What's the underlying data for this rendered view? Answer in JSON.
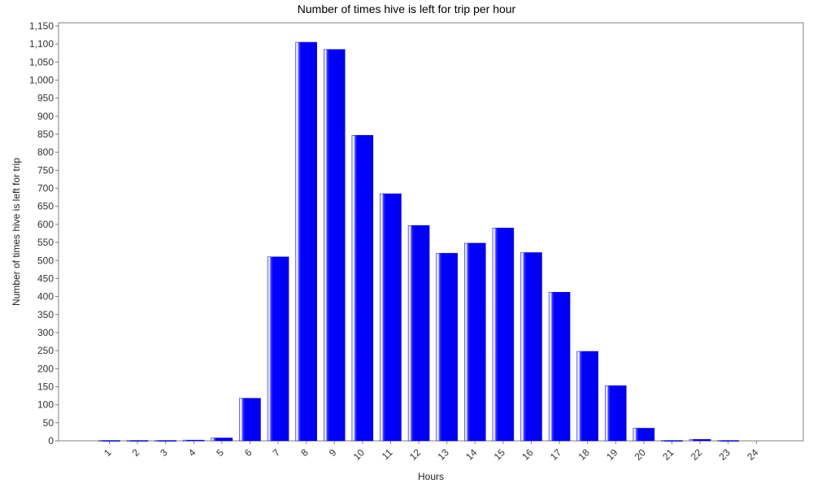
{
  "chart_data": {
    "type": "bar",
    "title": "Number of times hive is left for trip per hour",
    "xlabel": "Hours",
    "ylabel": "Number of times hive is left for trip",
    "ylim": [
      0,
      1150
    ],
    "ytick_step": 50,
    "grid": false,
    "categories": [
      "1",
      "2",
      "3",
      "4",
      "5",
      "6",
      "7",
      "8",
      "9",
      "10",
      "11",
      "12",
      "13",
      "14",
      "15",
      "16",
      "17",
      "18",
      "19",
      "20",
      "21",
      "22",
      "23",
      "24"
    ],
    "values": [
      1,
      1,
      1,
      2,
      8,
      118,
      510,
      1105,
      1085,
      847,
      685,
      597,
      520,
      548,
      590,
      522,
      412,
      248,
      153,
      35,
      1,
      4,
      1,
      0
    ],
    "bar_color": "#0000ff"
  }
}
